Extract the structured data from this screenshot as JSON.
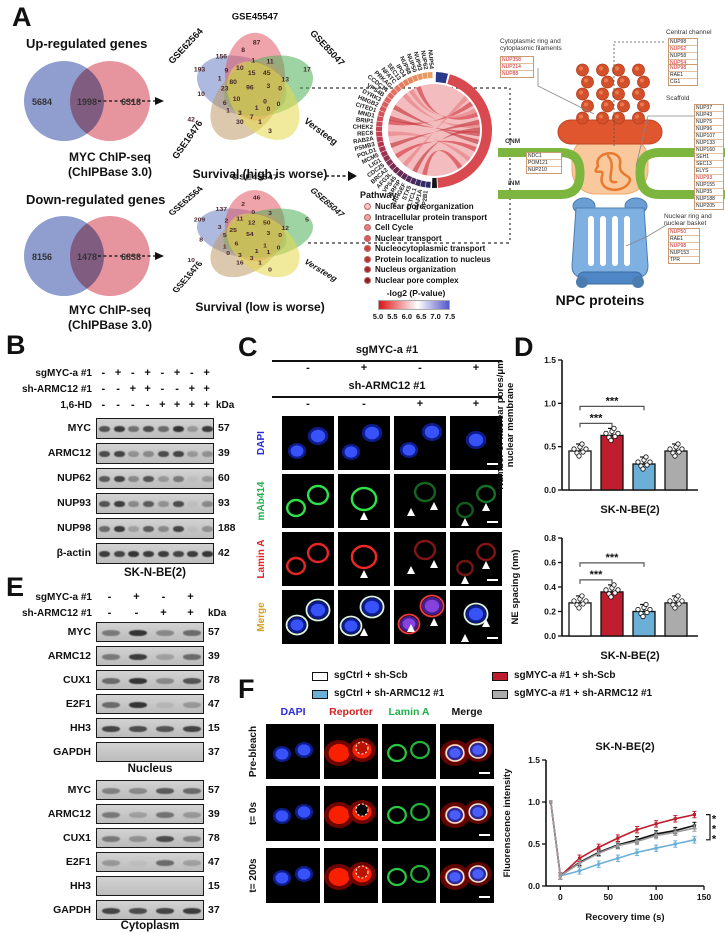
{
  "panelA": {
    "label": "A",
    "up_venn2": {
      "title": "Up-regulated genes",
      "left_count": "5684",
      "overlap_count": "1998",
      "right_count": "6318",
      "caption_line1": "MYC ChIP-seq",
      "caption_line2": "(ChIPBase 3.0)"
    },
    "down_venn2": {
      "title": "Down-regulated genes",
      "left_count": "8156",
      "overlap_count": "1478",
      "right_count": "6838",
      "caption_line1": "MYC ChIP-seq",
      "caption_line2": "(ChIPBase 3.0)"
    },
    "up_venn5": {
      "sets": [
        "GSE62564",
        "GSE45547",
        "GSE85047",
        "GSE16476",
        "Versteeg"
      ],
      "caption": "Survival (high is worse)",
      "counts": [
        "193",
        "87",
        "17",
        "42",
        "3",
        "156",
        "8",
        "1",
        "11",
        "9",
        "10",
        "15",
        "45",
        "13",
        "1",
        "80",
        "23",
        "96",
        "3",
        "0",
        "10",
        "10",
        "6",
        "0",
        "0",
        "1",
        "3",
        "1",
        "0",
        "30",
        "7",
        "1"
      ]
    },
    "down_venn5": {
      "sets": [
        "GSE62564",
        "GSE45547",
        "GSE85047",
        "GSE16476",
        "Versteeg"
      ],
      "caption": "Survival (low is worse)",
      "counts": [
        "209",
        "46",
        "5",
        "10",
        "0",
        "137",
        "2",
        "0",
        "3",
        "2",
        "11",
        "12",
        "50",
        "12",
        "3",
        "25",
        "5",
        "54",
        "3",
        "0",
        "8",
        "6",
        "1",
        "1",
        "0",
        "0",
        "3",
        "1",
        "1",
        "16",
        "3",
        "1"
      ]
    },
    "chord_genes": [
      "NUP54",
      "NUP62",
      "NUP93",
      "NUP50",
      "NUP88",
      "IPO4",
      "SEC13",
      "NFATC",
      "PRKAG",
      "CCDC14",
      "VPS4B",
      "DYRK3",
      "HMGB2",
      "CITED1",
      "MND1",
      "BRIP1",
      "CHEK2",
      "REC8",
      "RAB2A",
      "PSMB3",
      "POLD1",
      "MCM5",
      "LIG1",
      "CDC25",
      "BRCA2",
      "AFG3L",
      "VPS45",
      "ARFIP",
      "ARHGEF",
      "STX5",
      "CLTCL1",
      "MAP1A",
      "AP2B1"
    ],
    "pathway_legend": {
      "title": "Pathway",
      "items": [
        {
          "label": "Nuclear pore organization",
          "color": "#f5c6c6"
        },
        {
          "label": "Intracellular protein transport",
          "color": "#efa3a3"
        },
        {
          "label": "Cell Cycle",
          "color": "#e57f7f"
        },
        {
          "label": "Nuclear transport",
          "color": "#d95c5c"
        },
        {
          "label": "Nucleocytoplasmic transport",
          "color": "#cc4444"
        },
        {
          "label": "Protein localization to nucleus",
          "color": "#b93333"
        },
        {
          "label": "Nucleus organization",
          "color": "#a32a2a"
        },
        {
          "label": "Nuclear pore complex",
          "color": "#8d2222"
        }
      ]
    },
    "colorbar": {
      "title": "-log2 (P-value)",
      "ticks": [
        "5.0",
        "5.5",
        "6.0",
        "6.5",
        "7.0",
        "7.5"
      ]
    },
    "npc": {
      "title": "NPC proteins",
      "cyto_label_1": "Cytoplasmic ring and",
      "cyto_label_2": "cytoplasmic filaments",
      "cyto_list": [
        "NUP358",
        "NUP214",
        "NUP88"
      ],
      "cyto_red": [
        0,
        1,
        2
      ],
      "central_label": "Central channel",
      "central_list": [
        "NUP98",
        "NUP62",
        "NUP58",
        "NUP54"
      ],
      "central_red": [
        1,
        3
      ],
      "central_list2": [
        "NUP98",
        "RAE1",
        "CG1"
      ],
      "central2_red": [
        0
      ],
      "scaffold_label": "Scaffold",
      "scaffold_list": [
        "NUP37",
        "NUP43",
        "NUP75",
        "NUP96",
        "NUP107",
        "NUP133",
        "NUP160",
        "SEH1",
        "SEC13",
        "ELYS",
        "NUP93",
        "NUP155",
        "NUP35",
        "NUP188",
        "NUP205"
      ],
      "scaffold_red": [
        10
      ],
      "onm": "ONM",
      "inm": "INM",
      "membrane_list": [
        "NDC1",
        "POM121",
        "NUP210"
      ],
      "membrane_red": [],
      "basket_label_1": "Nuclear ring and",
      "basket_label_2": "nuclear basket",
      "basket_list": [
        "NUP50",
        "RAE1",
        "NUP98",
        "NUP153",
        "TPR"
      ],
      "basket_red": [
        0,
        2
      ]
    }
  },
  "panelB": {
    "label": "B",
    "conditions": [
      {
        "name": "sgMYC-a #1",
        "values": [
          "-",
          "+",
          "-",
          "+",
          "-",
          "+",
          "-",
          "+"
        ]
      },
      {
        "name": "sh-ARMC12 #1",
        "values": [
          "-",
          "-",
          "+",
          "+",
          "-",
          "-",
          "+",
          "+"
        ]
      },
      {
        "name": "1,6-HD",
        "values": [
          "-",
          "-",
          "-",
          "-",
          "+",
          "+",
          "+",
          "+"
        ]
      }
    ],
    "kda_label": "kDa",
    "blots": [
      {
        "protein": "MYC",
        "kda": "57"
      },
      {
        "protein": "ARMC12",
        "kda": "39"
      },
      {
        "protein": "NUP62",
        "kda": "60"
      },
      {
        "protein": "NUP93",
        "kda": "93"
      },
      {
        "protein": "NUP98",
        "kda": "188"
      },
      {
        "protein": "β-actin",
        "kda": "42"
      }
    ],
    "cell_line": "SK-N-BE(2)"
  },
  "panelC": {
    "label": "C",
    "header1": "sgMYC-a #1",
    "header1_values": [
      "-",
      "+",
      "-",
      "+"
    ],
    "header2": "sh-ARMC12 #1",
    "header2_values": [
      "-",
      "-",
      "+",
      "+"
    ],
    "rows": [
      {
        "label": "DAPI",
        "color": "#2a2ad8"
      },
      {
        "label": "mAb414",
        "color": "#21b14b"
      },
      {
        "label": "Lamin A",
        "color": "#e02222"
      },
      {
        "label": "Merge",
        "color": "#d8a020"
      }
    ]
  },
  "panelD": {
    "label": "D"
  },
  "panelE": {
    "label": "E",
    "conditions": [
      {
        "name": "sgMYC-a #1",
        "values": [
          "-",
          "+",
          "-",
          "+"
        ]
      },
      {
        "name": "sh-ARMC12 #1",
        "values": [
          "-",
          "-",
          "+",
          "+"
        ]
      }
    ],
    "kda_label": "kDa",
    "nucleus": {
      "caption": "Nucleus",
      "blots": [
        {
          "protein": "MYC",
          "kda": "57"
        },
        {
          "protein": "ARMC12",
          "kda": "39"
        },
        {
          "protein": "CUX1",
          "kda": "78"
        },
        {
          "protein": "E2F1",
          "kda": "47"
        },
        {
          "protein": "HH3",
          "kda": "15"
        },
        {
          "protein": "GAPDH",
          "kda": "37",
          "empty": true
        }
      ]
    },
    "cytoplasm": {
      "caption": "Cytoplasm",
      "blots": [
        {
          "protein": "MYC",
          "kda": "57"
        },
        {
          "protein": "ARMC12",
          "kda": "39"
        },
        {
          "protein": "CUX1",
          "kda": "78"
        },
        {
          "protein": "E2F1",
          "kda": "47"
        },
        {
          "protein": "HH3",
          "kda": "15",
          "empty": true
        },
        {
          "protein": "GAPDH",
          "kda": "37"
        }
      ]
    }
  },
  "panelF": {
    "label": "F",
    "col_headers": [
      {
        "label": "DAPI",
        "color": "#2a2ad8"
      },
      {
        "label": "Reporter",
        "color": "#d42222"
      },
      {
        "label": "Lamin A",
        "color": "#21b14b"
      },
      {
        "label": "Merge",
        "color": "#111111"
      }
    ],
    "row_labels": [
      "Pre-bleach",
      "t= 0s",
      "t= 200s"
    ]
  },
  "legend_groups": [
    {
      "label": "sgCtrl + sh-Scb",
      "color": "#ffffff"
    },
    {
      "label": "sgCtrl + sh-ARMC12 #1",
      "color": "#6baed6"
    },
    {
      "label": "sgMYC-a #1 + sh-Scb",
      "color": "#bf1e2e"
    },
    {
      "label": "sgMYC-a #1 + sh-ARMC12 #1",
      "color": "#ababab"
    }
  ],
  "chart_data": [
    {
      "id": "pores",
      "type": "bar",
      "title": "",
      "ylabel": "Number of nuclear pores/μm\nnuclear membrane",
      "xlabel": "SK-N-BE(2)",
      "ylim": [
        0,
        1.5
      ],
      "yticks": [
        0.0,
        0.5,
        1.0,
        1.5
      ],
      "categories": [
        "sgCtrl + sh-Scb",
        "sgMYC-a #1 + sh-Scb",
        "sgCtrl + sh-ARMC12 #1",
        "sgMYC-a #1 + sh-ARMC12 #1"
      ],
      "values": [
        0.45,
        0.63,
        0.3,
        0.45
      ],
      "colors": [
        "#ffffff",
        "#bf1e2e",
        "#6baed6",
        "#ababab"
      ],
      "significance": [
        {
          "from": 0,
          "to": 1,
          "label": "***"
        },
        {
          "from": 0,
          "to": 2,
          "label": "***"
        }
      ]
    },
    {
      "id": "ne_spacing",
      "type": "bar",
      "title": "",
      "ylabel": "NE spacing (nm)",
      "xlabel": "SK-N-BE(2)",
      "ylim": [
        0,
        0.8
      ],
      "yticks": [
        0.0,
        0.2,
        0.4,
        0.6,
        0.8
      ],
      "categories": [
        "sgCtr l+ sh-Scb",
        "sgMYC-a #1 + sh-Scb",
        "sgCtrl + sh-ARMC12 #1",
        "sgMYC-a #1 + sh-ARMC12 #1"
      ],
      "values": [
        0.27,
        0.36,
        0.2,
        0.27
      ],
      "colors": [
        "#ffffff",
        "#bf1e2e",
        "#6baed6",
        "#ababab"
      ],
      "significance": [
        {
          "from": 0,
          "to": 1,
          "label": "***"
        },
        {
          "from": 0,
          "to": 2,
          "label": "***"
        }
      ]
    },
    {
      "id": "frap",
      "type": "line",
      "title": "SK-N-BE(2)",
      "ylabel": "Fluorenscence intensity",
      "xlabel": "Recovery time (s)",
      "ylim": [
        0,
        1.5
      ],
      "yticks": [
        0.0,
        0.5,
        1.0,
        1.5
      ],
      "xticks": [
        0,
        50,
        100,
        150
      ],
      "x": [
        -10,
        0,
        20,
        40,
        60,
        80,
        100,
        120,
        140
      ],
      "series": [
        {
          "name": "sgCtrl + sh-Scb",
          "color": "#111111",
          "values": [
            1.0,
            0.12,
            0.28,
            0.4,
            0.49,
            0.55,
            0.62,
            0.66,
            0.72
          ]
        },
        {
          "name": "sgCtrl + sh-ARMC12 #1",
          "color": "#6baed6",
          "values": [
            1.0,
            0.12,
            0.18,
            0.26,
            0.33,
            0.4,
            0.45,
            0.5,
            0.55
          ]
        },
        {
          "name": "sgMYC-a #1 + sh-Scb",
          "color": "#bf1e2e",
          "values": [
            1.0,
            0.12,
            0.33,
            0.46,
            0.57,
            0.67,
            0.74,
            0.8,
            0.85
          ]
        },
        {
          "name": "sgMYC-a #1 + sh-ARMC12 #1",
          "color": "#9a9a9a",
          "values": [
            1.0,
            0.12,
            0.27,
            0.39,
            0.48,
            0.53,
            0.6,
            0.64,
            0.69
          ]
        }
      ],
      "significance": "***"
    }
  ]
}
